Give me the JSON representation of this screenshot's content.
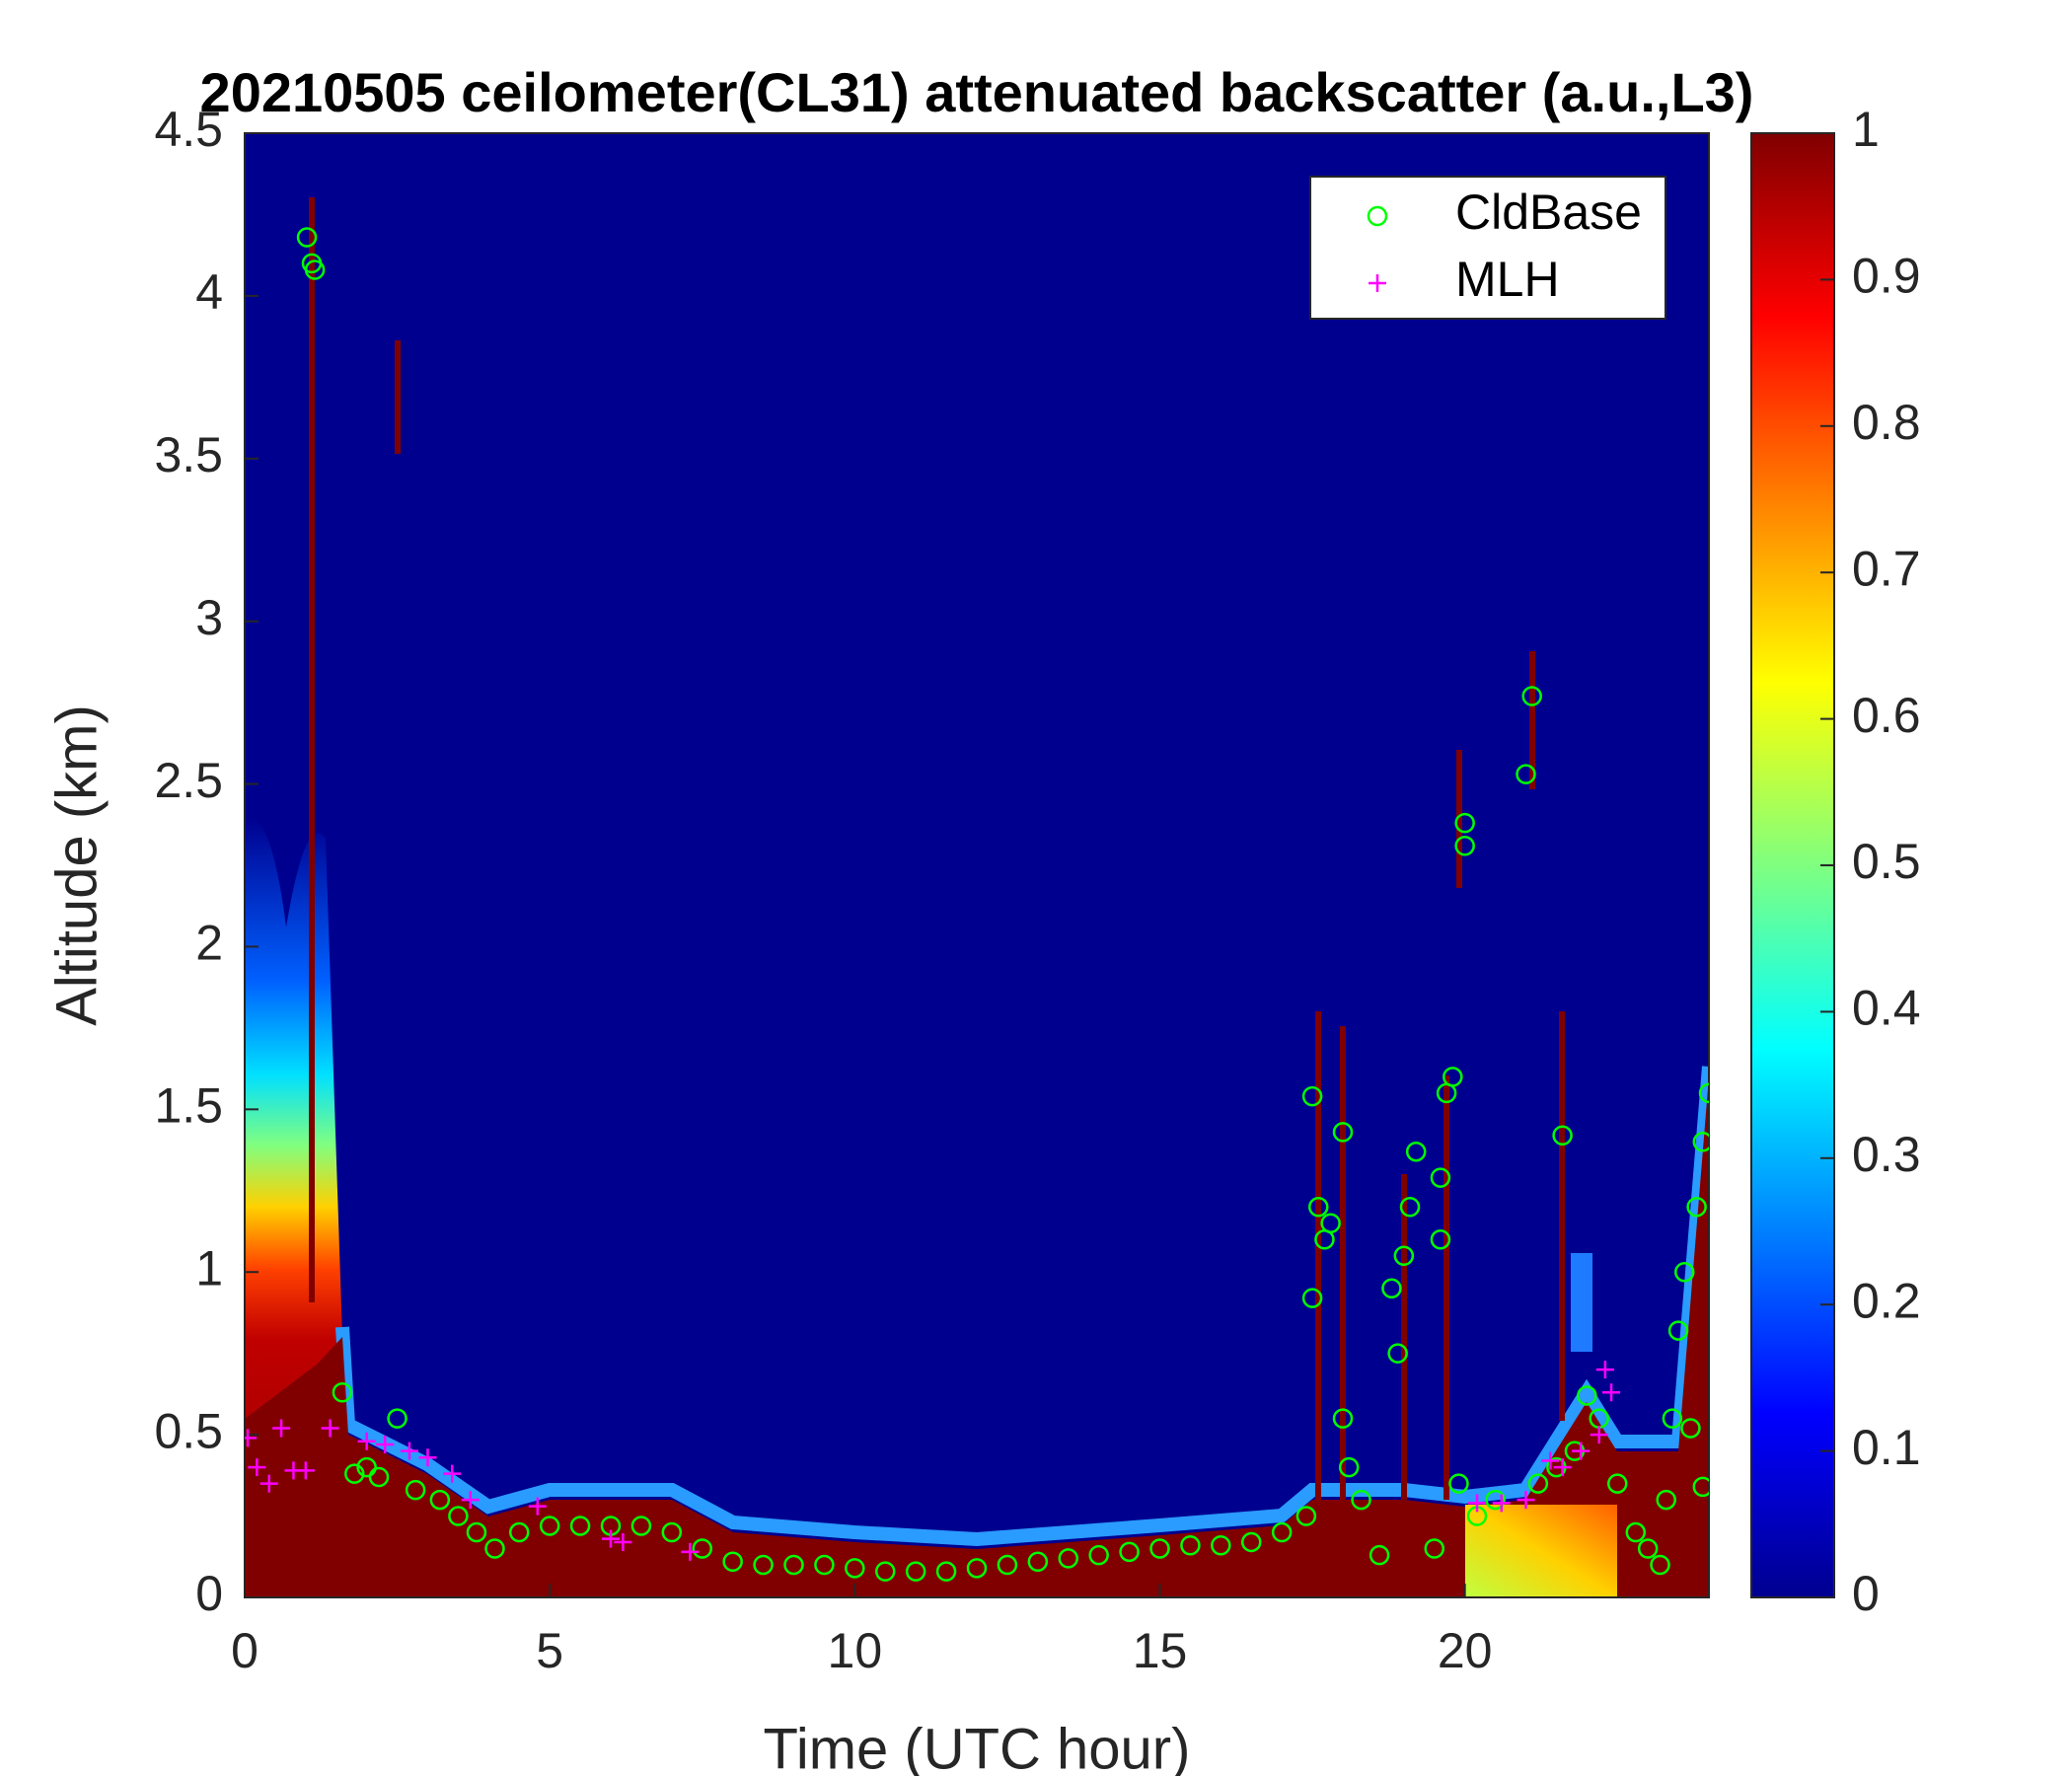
{
  "chart_data": {
    "type": "scatter",
    "title": "20210505 ceilometer(CL31) attenuated backscatter (a.u.,L3)",
    "x_label": "Time (UTC hour)",
    "y_label": "Altitude (km)",
    "xlim": [
      0,
      24
    ],
    "xticks": [
      0,
      5,
      10,
      15,
      20
    ],
    "ylim": [
      0,
      4.5
    ],
    "yticks": [
      0,
      0.5,
      1,
      1.5,
      2,
      2.5,
      3,
      3.5,
      4,
      4.5
    ],
    "colorbar": {
      "lim": [
        0,
        1
      ],
      "ticks": [
        0,
        0.1,
        0.2,
        0.3,
        0.4,
        0.5,
        0.6,
        0.7,
        0.8,
        0.9,
        1
      ]
    },
    "legend": "upper right",
    "series": [
      {
        "name": "CldBase",
        "color": "#00ff00",
        "marker": "circle",
        "x": [
          1.02,
          1.1,
          1.15,
          1.6,
          1.8,
          2.0,
          2.2,
          2.5,
          2.8,
          3.2,
          3.5,
          3.8,
          4.1,
          4.5,
          5,
          5.5,
          6,
          6.5,
          7,
          7.5,
          8,
          8.5,
          9,
          9.5,
          10,
          10.5,
          11,
          11.5,
          12,
          12.5,
          13,
          13.5,
          14,
          14.5,
          15,
          15.5,
          16,
          16.5,
          17,
          17.4,
          17.5,
          17.5,
          17.6,
          17.7,
          17.8,
          18,
          18,
          18.1,
          18.3,
          18.6,
          18.8,
          18.9,
          19,
          19.1,
          19.2,
          19.5,
          19.6,
          19.6,
          19.7,
          19.8,
          19.9,
          20,
          20,
          20.2,
          20.5,
          21,
          21.1,
          21.2,
          21.5,
          21.6,
          21.8,
          22,
          22.2,
          22.5,
          22.8,
          23,
          23.2,
          23.3,
          23.4,
          23.5,
          23.6,
          23.7,
          23.8,
          23.9,
          23.9,
          24
        ],
        "values": [
          4.18,
          4.1,
          4.08,
          0.63,
          0.38,
          0.4,
          0.37,
          0.55,
          0.33,
          0.3,
          0.25,
          0.2,
          0.15,
          0.2,
          0.22,
          0.22,
          0.22,
          0.22,
          0.2,
          0.15,
          0.11,
          0.1,
          0.1,
          0.1,
          0.09,
          0.08,
          0.08,
          0.08,
          0.09,
          0.1,
          0.11,
          0.12,
          0.13,
          0.14,
          0.15,
          0.16,
          0.16,
          0.17,
          0.2,
          0.25,
          1.54,
          0.92,
          1.2,
          1.1,
          1.15,
          1.43,
          0.55,
          0.4,
          0.3,
          0.13,
          0.95,
          0.75,
          1.05,
          1.2,
          1.37,
          0.15,
          1.29,
          1.1,
          1.55,
          1.6,
          0.35,
          2.38,
          2.31,
          0.25,
          0.3,
          2.53,
          2.77,
          0.35,
          0.4,
          1.42,
          0.45,
          0.62,
          0.55,
          0.35,
          0.2,
          0.15,
          0.1,
          0.3,
          0.55,
          0.82,
          1.0,
          0.52,
          1.2,
          0.34,
          1.4,
          1.55
        ]
      },
      {
        "name": "MLH",
        "color": "#ff00ff",
        "marker": "plus",
        "x": [
          0.05,
          0.2,
          0.4,
          0.6,
          0.8,
          1.0,
          1.4,
          2.0,
          2.3,
          2.7,
          3.0,
          3.4,
          3.7,
          4.8,
          6.0,
          6.2,
          7.3,
          20.2,
          20.6,
          21.0,
          21.4,
          21.6,
          21.9,
          22.2,
          22.3,
          22.4
        ],
        "values": [
          0.49,
          0.4,
          0.35,
          0.52,
          0.39,
          0.39,
          0.52,
          0.48,
          0.47,
          0.45,
          0.43,
          0.38,
          0.3,
          0.28,
          0.18,
          0.17,
          0.14,
          0.29,
          0.29,
          0.3,
          0.42,
          0.4,
          0.45,
          0.5,
          0.7,
          0.63
        ]
      }
    ]
  }
}
